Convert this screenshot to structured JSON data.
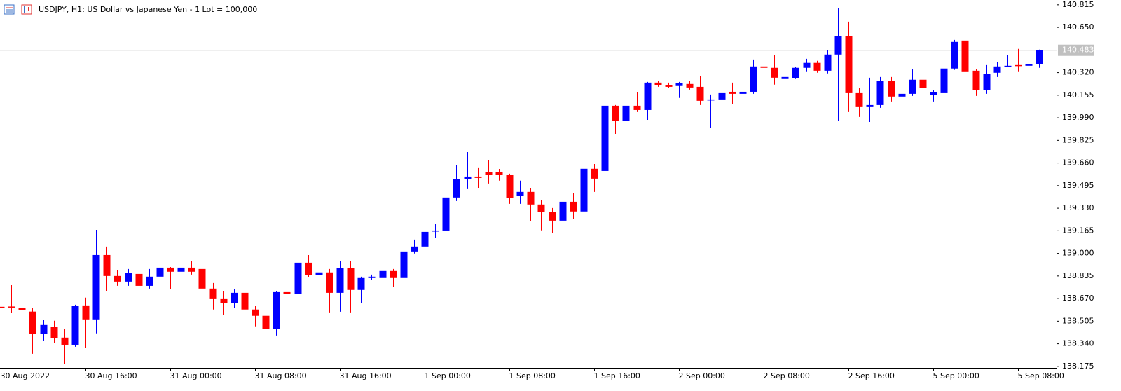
{
  "chart_data": {
    "type": "candlestick",
    "title": "USDJPY, H1:  US Dollar vs Japanese Yen - 1 Lot = 100,000",
    "categories": [
      "30 Aug 2022",
      null,
      null,
      null,
      null,
      null,
      null,
      null,
      "30 Aug 16:00",
      null,
      null,
      null,
      null,
      null,
      null,
      null,
      "31 Aug 00:00",
      null,
      null,
      null,
      null,
      null,
      null,
      null,
      "31 Aug 08:00",
      null,
      null,
      null,
      null,
      null,
      null,
      null,
      "31 Aug 16:00",
      null,
      null,
      null,
      null,
      null,
      null,
      null,
      "1 Sep 00:00",
      null,
      null,
      null,
      null,
      null,
      null,
      null,
      "1 Sep 08:00",
      null,
      null,
      null,
      null,
      null,
      null,
      null,
      "1 Sep 16:00",
      null,
      null,
      null,
      null,
      null,
      null,
      null,
      "2 Sep 00:00",
      null,
      null,
      null,
      null,
      null,
      null,
      null,
      "2 Sep 08:00",
      null,
      null,
      null,
      null,
      null,
      null,
      null,
      "2 Sep 16:00",
      null,
      null,
      null,
      null,
      null,
      null,
      null,
      "5 Sep 00:00",
      null,
      null,
      null,
      null,
      null,
      null,
      null,
      "5 Sep 08:00",
      null,
      null
    ],
    "open": [
      138.61,
      138.612,
      138.6,
      138.575,
      138.41,
      138.462,
      138.385,
      138.333,
      138.62,
      138.518,
      138.988,
      138.835,
      138.794,
      138.85,
      138.763,
      138.83,
      138.896,
      138.866,
      138.896,
      138.886,
      138.743,
      138.671,
      138.635,
      138.712,
      138.59,
      138.544,
      138.446,
      138.717,
      138.702,
      138.932,
      138.84,
      138.861,
      138.712,
      138.891,
      138.733,
      138.82,
      138.82,
      138.871,
      138.82,
      139.014,
      139.05,
      139.162,
      139.167,
      139.408,
      139.541,
      139.561,
      139.592,
      139.592,
      139.571,
      139.418,
      139.449,
      139.357,
      139.301,
      139.239,
      139.377,
      139.306,
      139.618,
      139.602,
      140.078,
      139.97,
      140.078,
      140.047,
      140.247,
      140.227,
      140.222,
      140.237,
      140.216,
      140.119,
      140.124,
      140.18,
      140.165,
      140.18,
      140.365,
      140.355,
      140.273,
      140.278,
      140.355,
      140.391,
      140.334,
      140.452,
      140.585,
      140.17,
      140.073,
      140.083,
      140.257,
      140.145,
      140.165,
      140.268,
      140.155,
      140.17,
      140.35,
      140.554,
      140.334,
      140.191,
      140.319,
      140.365,
      140.375,
      140.37,
      140.38
    ],
    "high": [
      138.62,
      138.768,
      138.758,
      138.6,
      138.513,
      138.508,
      138.446,
      138.625,
      138.677,
      139.172,
      139.05,
      138.876,
      138.886,
      138.866,
      138.886,
      138.912,
      138.901,
      138.901,
      138.947,
      138.906,
      138.784,
      138.722,
      138.738,
      138.738,
      138.615,
      138.64,
      138.727,
      138.891,
      138.942,
      138.988,
      138.901,
      138.886,
      138.947,
      138.947,
      138.83,
      138.845,
      138.906,
      138.886,
      139.05,
      139.101,
      139.172,
      139.213,
      139.51,
      139.643,
      139.74,
      139.623,
      139.679,
      139.617,
      139.582,
      139.531,
      139.474,
      139.387,
      139.331,
      139.459,
      139.438,
      139.761,
      139.653,
      140.247,
      140.083,
      140.078,
      140.175,
      140.252,
      140.257,
      140.247,
      140.252,
      140.257,
      140.293,
      140.16,
      140.196,
      140.247,
      140.222,
      140.416,
      140.411,
      140.447,
      140.35,
      140.36,
      140.421,
      140.406,
      140.483,
      140.79,
      140.692,
      140.206,
      140.283,
      140.288,
      140.288,
      140.17,
      140.345,
      140.278,
      140.191,
      140.452,
      140.559,
      140.559,
      140.345,
      140.375,
      140.396,
      140.447,
      140.493,
      140.467,
      140.488
    ],
    "low": [
      138.6,
      138.564,
      138.564,
      138.267,
      138.359,
      138.344,
      138.195,
      138.318,
      138.308,
      138.416,
      138.723,
      138.763,
      138.763,
      138.733,
      138.743,
      138.815,
      138.738,
      138.861,
      138.845,
      138.564,
      138.59,
      138.548,
      138.6,
      138.548,
      138.467,
      138.416,
      138.4,
      138.64,
      138.692,
      138.825,
      138.763,
      138.569,
      138.574,
      138.569,
      138.64,
      138.804,
      138.81,
      138.753,
      138.804,
      138.999,
      138.82,
      139.111,
      139.162,
      139.382,
      139.469,
      139.479,
      139.51,
      139.531,
      139.362,
      139.362,
      139.234,
      139.168,
      139.147,
      139.209,
      139.25,
      139.265,
      139.449,
      139.602,
      139.873,
      139.965,
      140.032,
      139.975,
      140.216,
      140.206,
      140.135,
      140.196,
      140.083,
      139.914,
      139.998,
      140.093,
      140.165,
      140.165,
      140.303,
      140.232,
      140.175,
      140.273,
      140.324,
      140.319,
      140.314,
      139.965,
      140.032,
      139.996,
      139.96,
      140.063,
      140.109,
      140.135,
      140.15,
      140.191,
      140.109,
      140.15,
      140.34,
      140.319,
      140.15,
      140.165,
      140.288,
      140.36,
      140.324,
      140.329,
      140.355
    ],
    "close": [
      138.605,
      138.607,
      138.585,
      138.41,
      138.477,
      138.38,
      138.333,
      138.615,
      138.518,
      138.988,
      138.835,
      138.794,
      138.855,
      138.763,
      138.83,
      138.896,
      138.866,
      138.896,
      138.866,
      138.743,
      138.671,
      138.635,
      138.712,
      138.59,
      138.544,
      138.446,
      138.717,
      138.702,
      138.932,
      138.84,
      138.861,
      138.712,
      138.891,
      138.733,
      138.82,
      138.83,
      138.871,
      138.82,
      139.014,
      139.05,
      139.157,
      139.167,
      139.408,
      139.541,
      139.561,
      139.551,
      139.571,
      139.571,
      139.403,
      139.449,
      139.357,
      139.301,
      139.239,
      139.377,
      139.306,
      139.618,
      139.546,
      140.078,
      139.97,
      140.078,
      140.047,
      140.247,
      140.227,
      140.216,
      140.242,
      140.211,
      140.114,
      140.124,
      140.17,
      140.165,
      140.18,
      140.365,
      140.355,
      140.283,
      140.288,
      140.355,
      140.391,
      140.334,
      140.452,
      140.585,
      140.17,
      140.073,
      140.083,
      140.257,
      140.145,
      140.165,
      140.268,
      140.206,
      140.175,
      140.35,
      140.544,
      140.324,
      140.191,
      140.309,
      140.365,
      140.37,
      140.37,
      140.38,
      140.483
    ],
    "up_color": "#0000ff",
    "down_color": "#ff0000",
    "ylim": [
      138.164,
      140.85
    ],
    "yticks": [
      140.815,
      {
        "value": 140.65,
        "label": "140.650"
      },
      {
        "value": 140.32,
        "label": "140.320"
      },
      140.155,
      {
        "value": 139.99,
        "label": "139.990"
      },
      139.825,
      {
        "value": 139.66,
        "label": "139.660"
      },
      139.495,
      {
        "value": 139.33,
        "label": "139.330"
      },
      139.165,
      {
        "value": 139.0,
        "label": "139.000"
      },
      138.835,
      {
        "value": 138.67,
        "label": "138.670"
      },
      138.505,
      {
        "value": 138.34,
        "label": "138.340"
      },
      138.175
    ],
    "last_price": 140.483,
    "last_price_color": "#c0c0c0",
    "grid": false
  }
}
